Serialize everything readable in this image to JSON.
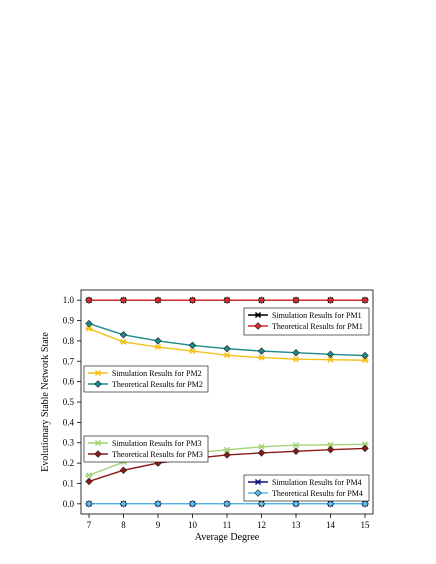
{
  "chart_data": {
    "type": "line",
    "xlabel": "Average Degree",
    "ylabel": "Evolutionary Stable Network State",
    "x": [
      7,
      8,
      9,
      10,
      11,
      12,
      13,
      14,
      15
    ],
    "xlim": [
      7,
      15
    ],
    "ylim": [
      -0.05,
      1.05
    ],
    "y_ticks": [
      0.0,
      0.1,
      0.2,
      0.3,
      0.4,
      0.5,
      0.6,
      0.7,
      0.8,
      0.9,
      1.0
    ],
    "y_tick_labels": [
      "0.0",
      "0.1",
      "0.2",
      "0.3",
      "0.4",
      "0.5",
      "0.6",
      "0.7",
      "0.8",
      "0.9",
      "1.0"
    ],
    "x_tick_labels": [
      "7",
      "8",
      "9",
      "10",
      "11",
      "12",
      "13",
      "14",
      "15"
    ],
    "grid": false,
    "series": [
      {
        "name": "Simulation Results for PM1",
        "color": "#000000",
        "marker": "star",
        "values": [
          1.0,
          1.0,
          1.0,
          1.0,
          1.0,
          1.0,
          1.0,
          1.0,
          1.0
        ]
      },
      {
        "name": "Theoretical Results for PM1",
        "color": "#e3262b",
        "marker": "diamond",
        "values": [
          1.0,
          1.0,
          1.0,
          1.0,
          1.0,
          1.0,
          1.0,
          1.0,
          1.0
        ]
      },
      {
        "name": "Simulation Results for PM2",
        "color": "#f2c21b",
        "marker": "star",
        "values": [
          0.86,
          0.795,
          0.77,
          0.75,
          0.73,
          0.718,
          0.71,
          0.708,
          0.705
        ]
      },
      {
        "name": "Theoretical Results for PM2",
        "color": "#1a8a8a",
        "marker": "diamond",
        "values": [
          0.885,
          0.83,
          0.8,
          0.778,
          0.762,
          0.75,
          0.742,
          0.734,
          0.728
        ]
      },
      {
        "name": "Simulation Results for PM3",
        "color": "#a6d27a",
        "marker": "star",
        "values": [
          0.14,
          0.205,
          0.23,
          0.25,
          0.265,
          0.28,
          0.288,
          0.29,
          0.292
        ]
      },
      {
        "name": "Theoretical Results for PM3",
        "color": "#8b1a1a",
        "marker": "diamond",
        "values": [
          0.11,
          0.165,
          0.2,
          0.222,
          0.24,
          0.25,
          0.258,
          0.266,
          0.272
        ]
      },
      {
        "name": "Simulation Results for PM4",
        "color": "#13137f",
        "marker": "star",
        "values": [
          0,
          0,
          0,
          0,
          0,
          0,
          0,
          0,
          0
        ]
      },
      {
        "name": "Theoretical Results for PM4",
        "color": "#55c0ee",
        "marker": "diamond",
        "values": [
          0,
          0,
          0,
          0,
          0,
          0,
          0,
          0,
          0
        ]
      }
    ],
    "legends": [
      {
        "entries": [
          0,
          1
        ]
      },
      {
        "entries": [
          2,
          3
        ]
      },
      {
        "entries": [
          4,
          5
        ]
      },
      {
        "entries": [
          6,
          7
        ]
      }
    ]
  }
}
